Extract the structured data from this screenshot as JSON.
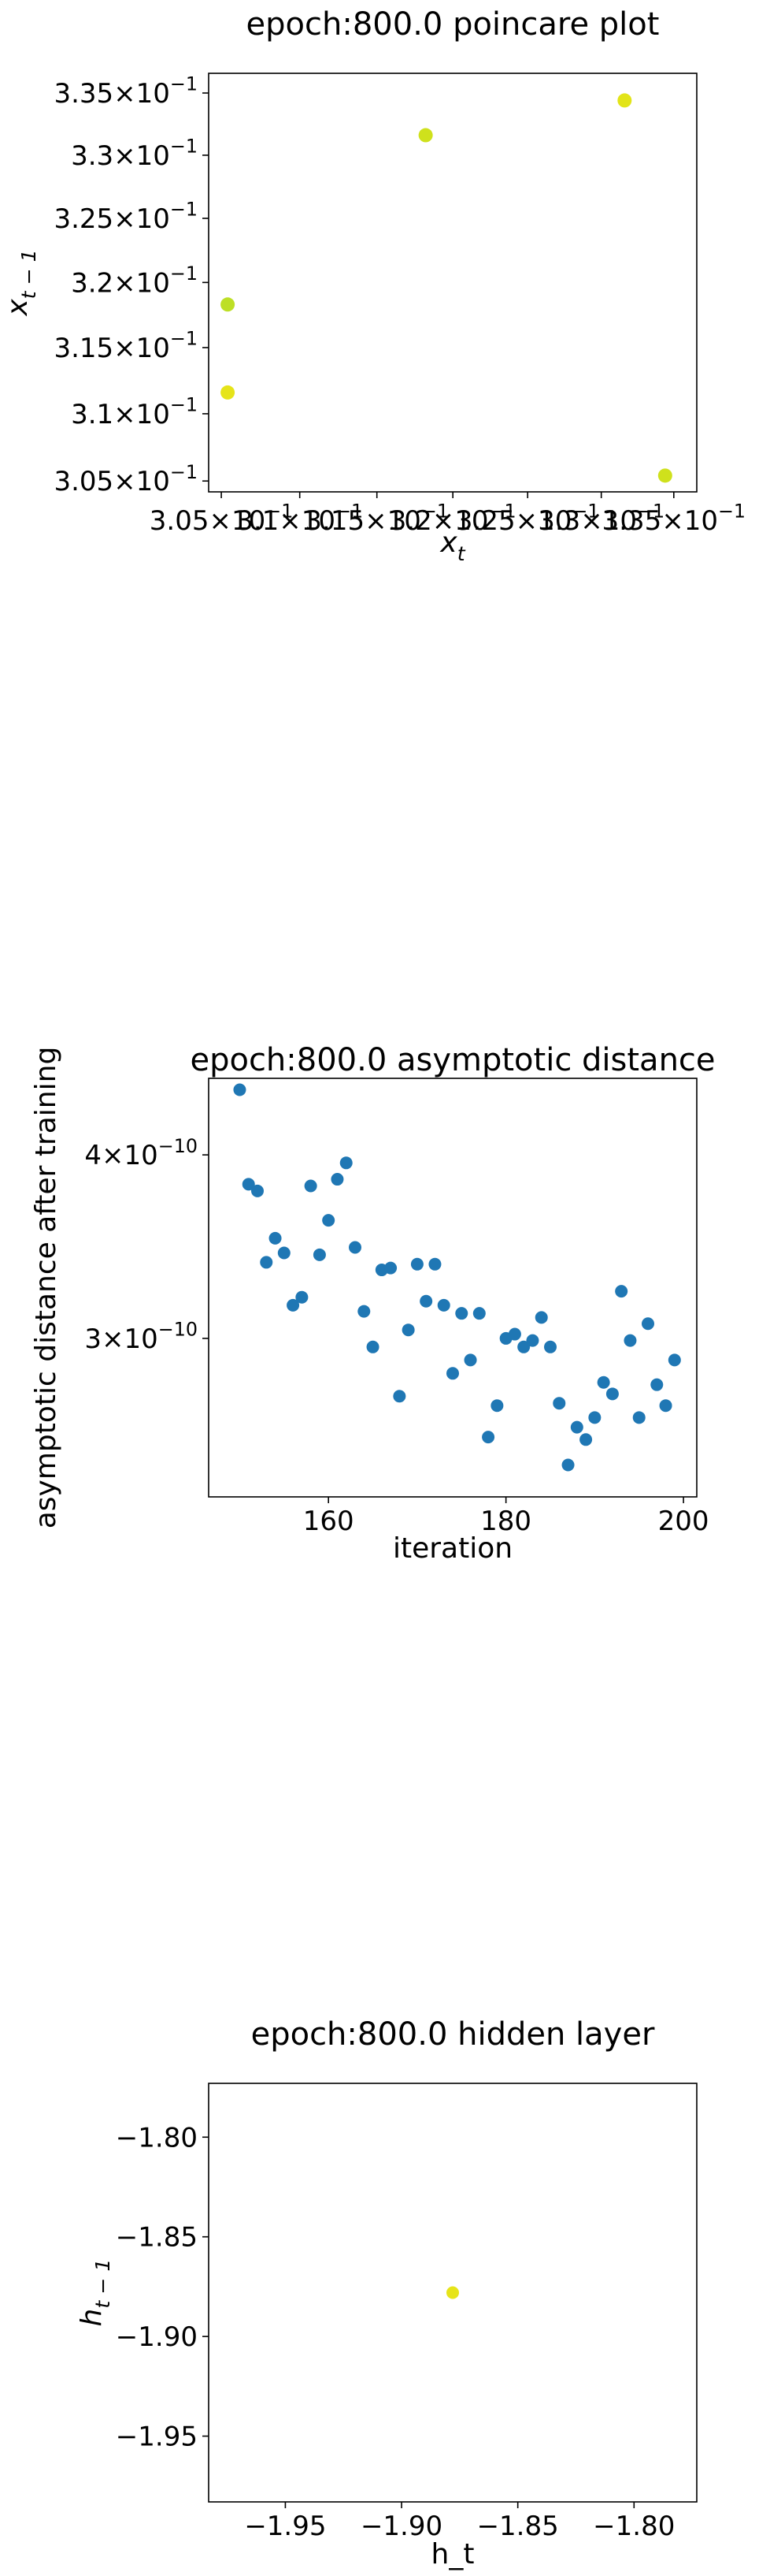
{
  "chart_data": [
    {
      "type": "scatter",
      "title": "epoch:800.0 poincare plot",
      "xlabel_base": "x",
      "xlabel_sub": "t",
      "ylabel_base": "x",
      "ylabel_sub": "t − 1",
      "xscale": "log",
      "yscale": "log",
      "xlim": [
        0.3042,
        0.3366
      ],
      "ylim": [
        0.3042,
        0.3366
      ],
      "xticks": [
        0.305,
        0.31,
        0.315,
        0.32,
        0.325,
        0.33,
        0.335
      ],
      "xtick_mantissas": [
        "3.05",
        "3.1",
        "3.15",
        "3.2",
        "3.25",
        "3.3",
        "3.35"
      ],
      "yticks": [
        0.305,
        0.31,
        0.315,
        0.32,
        0.325,
        0.33,
        0.335
      ],
      "ytick_mantissas": [
        "3.05",
        "3.1",
        "3.15",
        "3.2",
        "3.25",
        "3.3",
        "3.35"
      ],
      "tick_base": "10",
      "tick_exp": "−1",
      "points": [
        {
          "x": 0.3054,
          "y": 0.3183,
          "color": "#bddf26"
        },
        {
          "x": 0.3182,
          "y": 0.3316,
          "color": "#cfe11c"
        },
        {
          "x": 0.3316,
          "y": 0.3344,
          "color": "#e2e418"
        },
        {
          "x": 0.3344,
          "y": 0.3054,
          "color": "#cfe11c"
        },
        {
          "x": 0.3054,
          "y": 0.3116,
          "color": "#e6e419"
        }
      ]
    },
    {
      "type": "scatter",
      "title": "epoch:800.0 asymptotic distance",
      "xlabel": "iteration",
      "ylabel": "asymptotic distance after training",
      "yscale": "log",
      "xlim": [
        146.5,
        201.5
      ],
      "ylim": [
        2.34e-10,
        4.51e-10
      ],
      "xticks": [
        160,
        180,
        200
      ],
      "xtick_labels": [
        "160",
        "180",
        "200"
      ],
      "yticks": [
        3e-10,
        4e-10
      ],
      "ytick_mantissas": [
        "3",
        "4"
      ],
      "tick_base": "10",
      "tick_exp": "−10",
      "color": "#1f77b4",
      "x": [
        150,
        151,
        152,
        153,
        154,
        155,
        156,
        157,
        158,
        159,
        160,
        161,
        162,
        163,
        164,
        165,
        166,
        167,
        168,
        169,
        170,
        171,
        172,
        173,
        174,
        175,
        176,
        177,
        178,
        179,
        180,
        181,
        182,
        183,
        184,
        185,
        186,
        187,
        188,
        189,
        190,
        191,
        192,
        193,
        194,
        195,
        196,
        197,
        198,
        199
      ],
      "y": [
        4.43e-10,
        3.82e-10,
        3.78e-10,
        3.38e-10,
        3.51e-10,
        3.43e-10,
        3.16e-10,
        3.2e-10,
        3.81e-10,
        3.42e-10,
        3.61e-10,
        3.85e-10,
        3.95e-10,
        3.46e-10,
        3.13e-10,
        2.96e-10,
        3.34e-10,
        3.35e-10,
        2.74e-10,
        3.04e-10,
        3.37e-10,
        3.18e-10,
        3.37e-10,
        3.16e-10,
        2.84e-10,
        3.12e-10,
        2.9e-10,
        3.12e-10,
        2.57e-10,
        2.7e-10,
        3e-10,
        3.02e-10,
        2.96e-10,
        2.99e-10,
        3.1e-10,
        2.96e-10,
        2.71e-10,
        2.46e-10,
        2.61e-10,
        2.56e-10,
        2.65e-10,
        2.8e-10,
        2.75e-10,
        3.23e-10,
        2.99e-10,
        2.65e-10,
        3.07e-10,
        2.79e-10,
        2.7e-10,
        2.9e-10
      ]
    },
    {
      "type": "scatter",
      "title": "epoch:800.0 hidden layer",
      "xlabel": "h_t",
      "ylabel_base": "h",
      "ylabel_sub": "t − 1",
      "xlim": [
        -1.983,
        -1.773
      ],
      "ylim": [
        -1.983,
        -1.773
      ],
      "xticks": [
        -1.95,
        -1.9,
        -1.85,
        -1.8
      ],
      "xtick_labels": [
        "−1.95",
        "−1.90",
        "−1.85",
        "−1.80"
      ],
      "yticks": [
        -1.95,
        -1.9,
        -1.85,
        -1.8
      ],
      "ytick_labels": [
        "−1.95",
        "−1.90",
        "−1.85",
        "−1.80"
      ],
      "points": [
        {
          "x": -1.878,
          "y": -1.878,
          "color": "#e6e419"
        }
      ]
    }
  ]
}
